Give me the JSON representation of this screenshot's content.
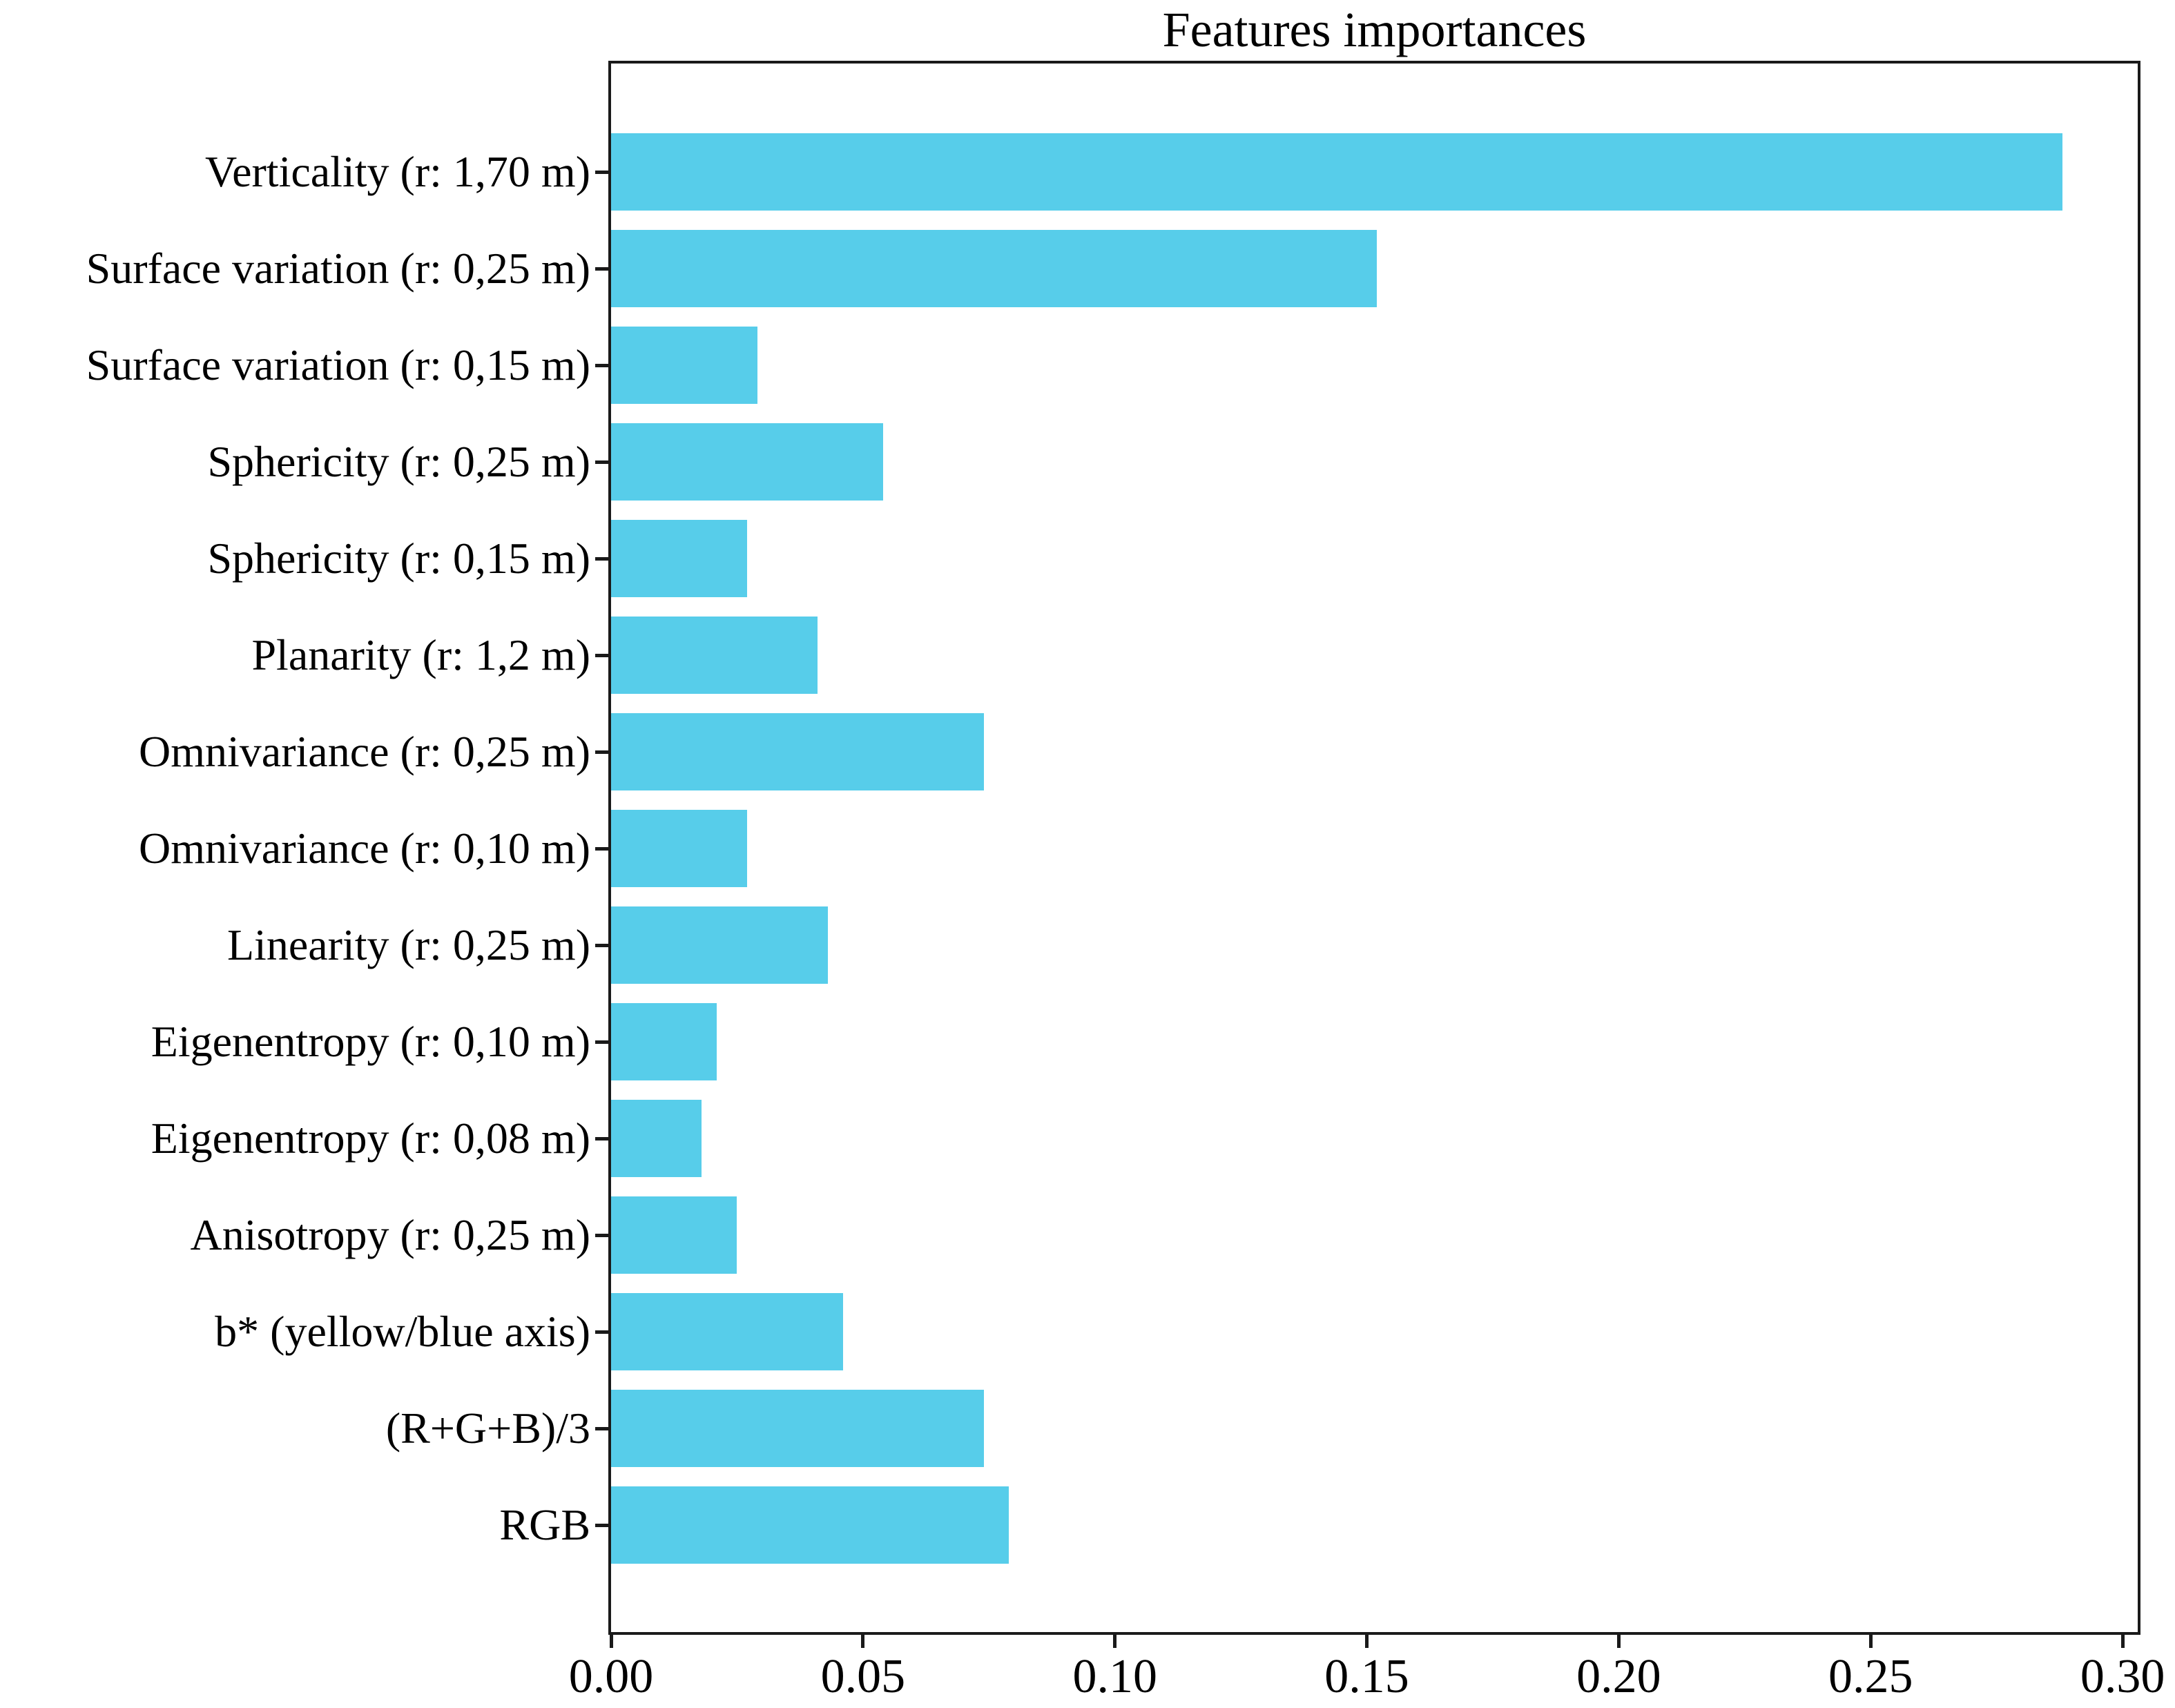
{
  "chart_data": {
    "type": "bar",
    "orientation": "horizontal",
    "title": "Features importances",
    "categories": [
      "Verticality (r: 1,70 m)",
      "Surface variation (r: 0,25 m)",
      "Surface variation (r: 0,15 m)",
      "Sphericity (r: 0,25 m)",
      "Sphericity (r: 0,15 m)",
      "Planarity (r: 1,2 m)",
      "Omnivariance (r: 0,25 m)",
      "Omnivariance (r: 0,10 m)",
      "Linearity (r: 0,25 m)",
      "Eigenentropy (r: 0,10 m)",
      "Eigenentropy (r: 0,08 m)",
      "Anisotropy (r: 0,25 m)",
      "b* (yellow/blue axis)",
      "(R+G+B)/3",
      "RGB"
    ],
    "values": [
      0.288,
      0.152,
      0.029,
      0.054,
      0.027,
      0.041,
      0.074,
      0.027,
      0.043,
      0.021,
      0.018,
      0.025,
      0.046,
      0.074,
      0.079
    ],
    "xlabel": "",
    "ylabel": "",
    "xlim": [
      0.0,
      0.303
    ],
    "x_tick_values": [
      0.0,
      0.05,
      0.1,
      0.15,
      0.2,
      0.25,
      0.3
    ],
    "x_tick_labels": [
      "0.00",
      "0.05",
      "0.10",
      "0.15",
      "0.20",
      "0.25",
      "0.30"
    ],
    "grid": false,
    "legend": false,
    "bar_color": "#57CDEA",
    "axis_color": "#1a1a1a",
    "text_color": "#000000",
    "bar_fraction": 0.8
  }
}
